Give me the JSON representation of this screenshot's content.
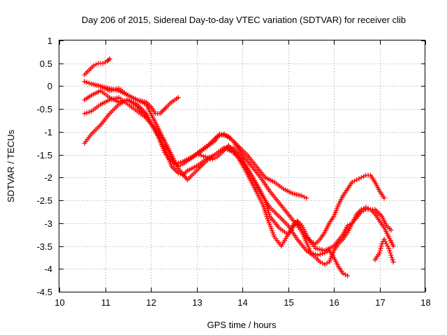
{
  "chart_data": {
    "type": "scatter",
    "title": "Day 206 of 2015, Sidereal Day-to-day VTEC variation (SDTVAR) for receiver clib",
    "xlabel": "GPS time / hours",
    "ylabel": "SDTVAR / TECUs",
    "xlim": [
      10,
      18
    ],
    "ylim": [
      -4.5,
      1
    ],
    "xticks": [
      "10",
      "11",
      "12",
      "13",
      "14",
      "15",
      "16",
      "17",
      "18"
    ],
    "yticks": [
      "1",
      "0.5",
      "0",
      "-0.5",
      "-1",
      "-1.5",
      "-2",
      "-2.5",
      "-3",
      "-3.5",
      "-4",
      "-4.5"
    ],
    "grid": true,
    "marker": "plus",
    "color": "#ff0000",
    "series": [
      {
        "x": [
          10.55,
          10.65,
          10.75,
          10.85,
          10.95,
          11.05,
          11.1
        ],
        "y": [
          0.25,
          0.35,
          0.45,
          0.5,
          0.5,
          0.55,
          0.6
        ]
      },
      {
        "x": [
          10.55,
          10.7,
          10.9,
          11.1,
          11.3,
          11.5,
          11.7,
          11.9,
          12.0,
          12.1,
          12.2,
          12.35,
          12.45,
          12.6
        ],
        "y": [
          0.1,
          0.05,
          0.0,
          -0.05,
          -0.1,
          -0.2,
          -0.3,
          -0.35,
          -0.45,
          -0.6,
          -0.6,
          -0.45,
          -0.35,
          -0.25
        ]
      },
      {
        "x": [
          10.55,
          10.7,
          10.9,
          11.1,
          11.3,
          11.5,
          11.7,
          11.9,
          12.0,
          12.1,
          12.2,
          12.3,
          12.4,
          12.5,
          12.6,
          12.7,
          12.85,
          13.0,
          13.2,
          13.4,
          13.5,
          13.7,
          13.9,
          14.1,
          14.3,
          14.5,
          14.7,
          14.9,
          15.1,
          15.3,
          15.4
        ],
        "y": [
          0.1,
          0.05,
          0.0,
          -0.1,
          -0.05,
          -0.2,
          -0.3,
          -0.4,
          -0.6,
          -0.8,
          -1.0,
          -1.2,
          -1.45,
          -1.7,
          -1.75,
          -1.7,
          -1.6,
          -1.5,
          -1.35,
          -1.2,
          -1.05,
          -1.1,
          -1.3,
          -1.5,
          -1.75,
          -2.0,
          -2.1,
          -2.25,
          -2.35,
          -2.4,
          -2.45
        ]
      },
      {
        "x": [
          10.55,
          10.7,
          10.9,
          11.1,
          11.3,
          11.5,
          11.7,
          11.9,
          12.1,
          12.2,
          12.3,
          12.4,
          12.55,
          12.7,
          12.9,
          13.1,
          13.3,
          13.45,
          13.6,
          13.8,
          14.0,
          14.2,
          14.4,
          14.6,
          14.8,
          15.0,
          15.2,
          15.35,
          15.5,
          15.6,
          15.7,
          15.8,
          15.9,
          16.0,
          16.1,
          16.2,
          16.3,
          16.4,
          16.5,
          16.6,
          16.7,
          16.8,
          16.9,
          17.0,
          17.1
        ],
        "y": [
          -0.6,
          -0.55,
          -0.4,
          -0.3,
          -0.25,
          -0.4,
          -0.55,
          -0.7,
          -0.95,
          -1.2,
          -1.45,
          -1.6,
          -1.7,
          -1.65,
          -1.55,
          -1.4,
          -1.25,
          -1.1,
          -1.05,
          -1.2,
          -1.5,
          -1.75,
          -2.0,
          -2.3,
          -2.55,
          -2.8,
          -3.05,
          -3.25,
          -3.4,
          -3.45,
          -3.35,
          -3.2,
          -3.0,
          -2.85,
          -2.6,
          -2.4,
          -2.25,
          -2.1,
          -2.05,
          -2.0,
          -1.95,
          -1.95,
          -2.1,
          -2.3,
          -2.45
        ]
      },
      {
        "x": [
          10.55,
          10.7,
          10.9,
          11.1,
          11.3,
          11.5,
          11.7,
          11.9,
          12.1,
          12.3,
          12.45,
          12.6,
          12.7,
          12.8,
          13.0,
          13.2,
          13.4,
          13.6,
          13.8,
          14.0,
          14.2,
          14.4,
          14.6,
          14.8,
          15.0,
          15.2,
          15.4,
          15.6,
          15.7,
          15.8,
          15.9,
          16.0,
          16.1,
          16.2,
          16.3,
          16.4,
          16.5,
          16.6,
          16.7,
          16.8,
          16.9,
          17.0,
          17.1,
          17.2,
          17.3
        ],
        "y": [
          -0.3,
          -0.2,
          -0.1,
          -0.25,
          -0.35,
          -0.3,
          -0.4,
          -0.6,
          -1.0,
          -1.35,
          -1.75,
          -1.9,
          -1.95,
          -1.85,
          -1.75,
          -1.6,
          -1.5,
          -1.35,
          -1.35,
          -1.6,
          -1.95,
          -2.35,
          -2.65,
          -2.85,
          -3.05,
          -3.35,
          -3.6,
          -3.75,
          -3.85,
          -3.9,
          -3.85,
          -3.6,
          -3.45,
          -3.35,
          -3.2,
          -3.0,
          -2.8,
          -2.7,
          -2.65,
          -2.7,
          -2.8,
          -2.95,
          -3.1,
          -3.3,
          -3.5
        ]
      },
      {
        "x": [
          10.55,
          10.7,
          10.9,
          11.1,
          11.3,
          11.5,
          11.7,
          11.9,
          12.1,
          12.3,
          12.45,
          12.6,
          12.8,
          13.0,
          13.2,
          13.4,
          13.6,
          13.8,
          14.0,
          14.2,
          14.4,
          14.5,
          14.6,
          14.8,
          15.0,
          15.1,
          15.2,
          15.3,
          15.45,
          15.6,
          15.8,
          16.0,
          16.2,
          16.3,
          16.4,
          16.6,
          16.7,
          16.9,
          17.05,
          17.15,
          17.25
        ],
        "y": [
          -1.25,
          -1.05,
          -0.85,
          -0.6,
          -0.4,
          -0.3,
          -0.45,
          -0.65,
          -0.95,
          -1.2,
          -1.5,
          -1.8,
          -2.05,
          -1.85,
          -1.65,
          -1.5,
          -1.35,
          -1.45,
          -1.65,
          -1.95,
          -2.3,
          -2.5,
          -2.85,
          -3.1,
          -3.25,
          -3.1,
          -2.95,
          -3.05,
          -3.35,
          -3.55,
          -3.6,
          -3.5,
          -3.25,
          -3.05,
          -3.0,
          -2.75,
          -2.7,
          -2.7,
          -2.85,
          -3.05,
          -3.15
        ]
      },
      {
        "x": [
          13.05,
          13.2,
          13.35,
          13.45,
          13.55,
          13.7,
          13.9,
          14.1,
          14.3,
          14.45,
          14.55,
          14.7,
          14.85,
          15.0,
          15.1,
          15.2,
          15.35,
          15.5,
          15.65,
          15.8,
          15.9,
          16.0,
          16.1,
          16.2,
          16.3
        ],
        "y": [
          -1.5,
          -1.55,
          -1.6,
          -1.55,
          -1.45,
          -1.3,
          -1.55,
          -1.9,
          -2.3,
          -2.6,
          -2.9,
          -3.3,
          -3.5,
          -3.25,
          -3.05,
          -2.95,
          -3.3,
          -3.65,
          -3.7,
          -3.65,
          -3.6,
          -3.75,
          -3.95,
          -4.1,
          -4.15
        ]
      },
      {
        "x": [
          16.9,
          17.0,
          17.05,
          17.1,
          17.15,
          17.2,
          17.25,
          17.3
        ],
        "y": [
          -3.8,
          -3.65,
          -3.45,
          -3.35,
          -3.45,
          -3.55,
          -3.7,
          -3.85
        ]
      }
    ]
  }
}
